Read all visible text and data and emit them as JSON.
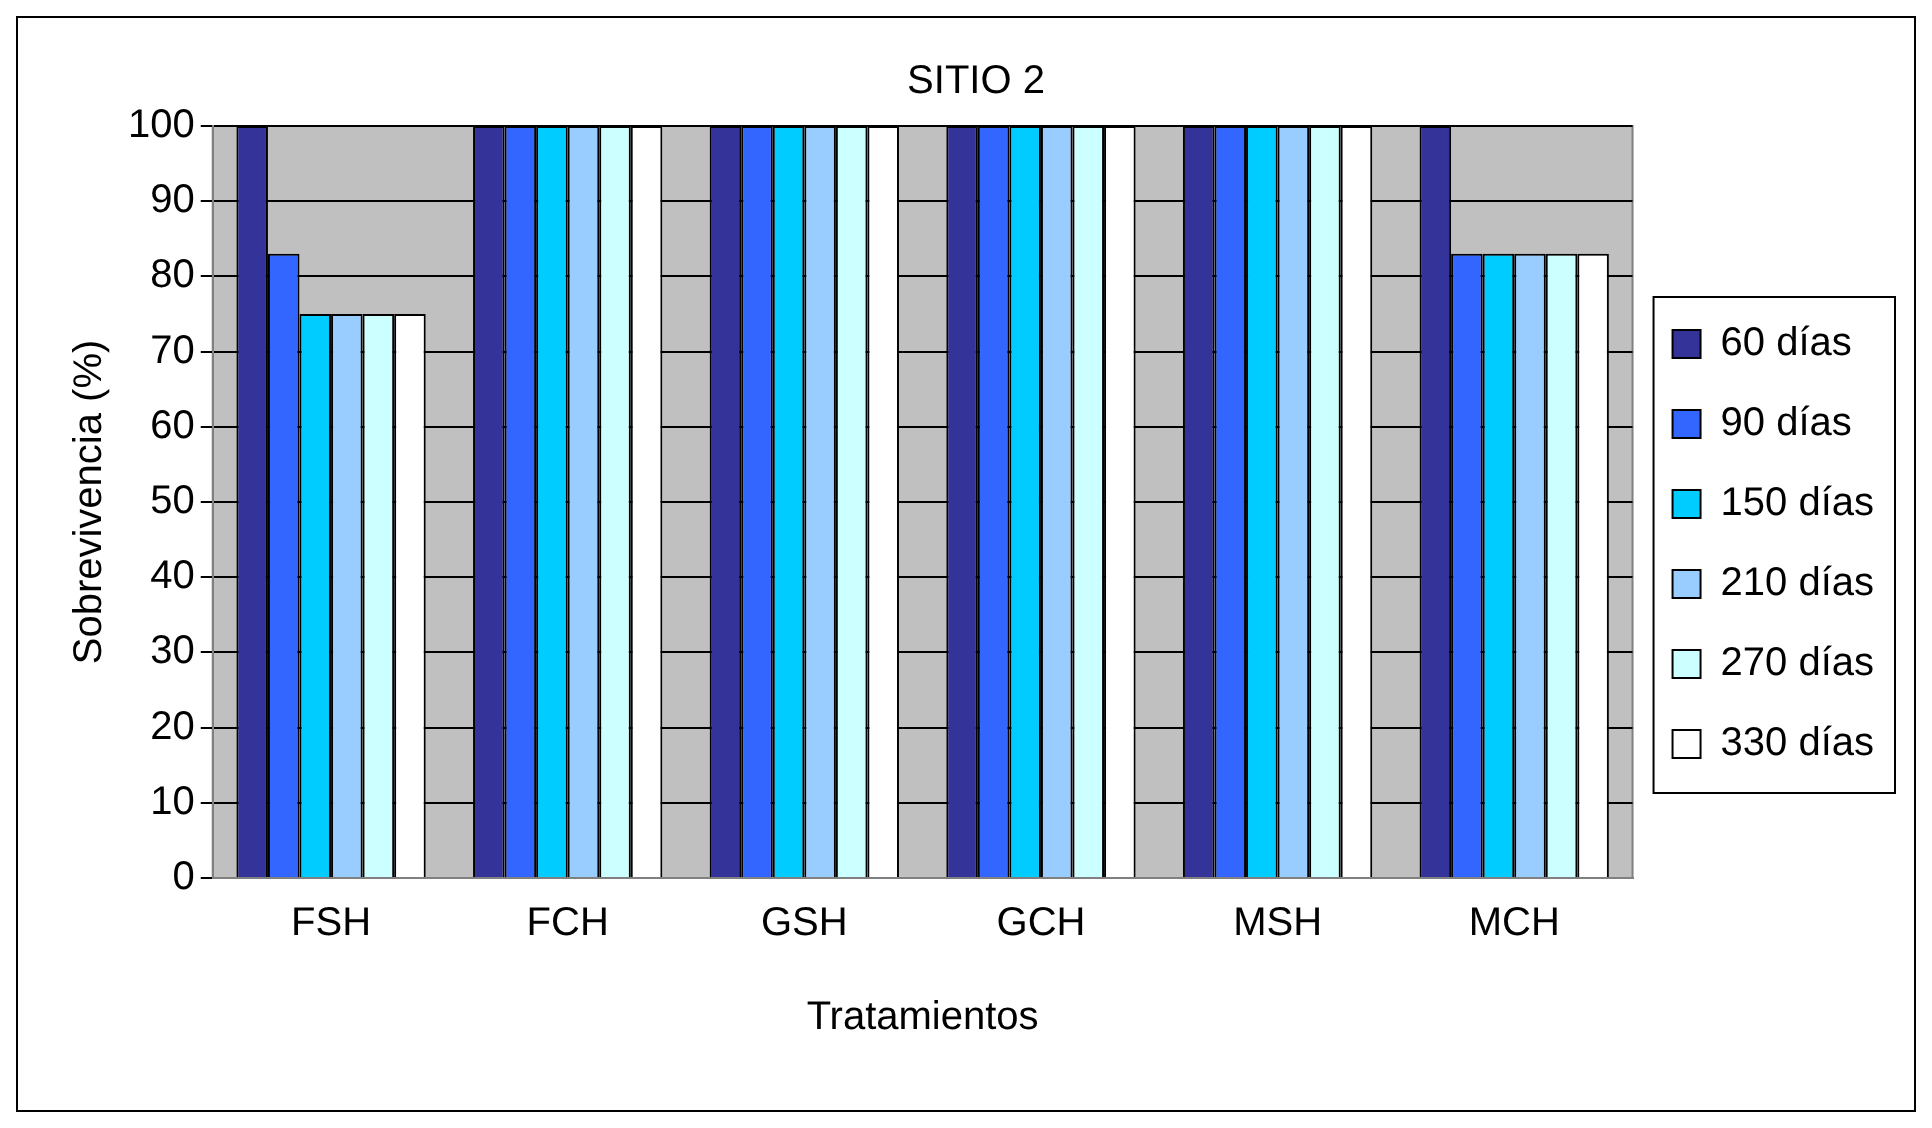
{
  "chart_data": {
    "type": "bar",
    "title": "SITIO 2",
    "xlabel": "Tratamientos",
    "ylabel": "Sobrevivencia (%)",
    "categories": [
      "FSH",
      "FCH",
      "GSH",
      "GCH",
      "MSH",
      "MCH"
    ],
    "series": [
      {
        "name": "60 días",
        "color": "#333399",
        "values": [
          100,
          100,
          100,
          100,
          100,
          100
        ]
      },
      {
        "name": "90 días",
        "color": "#3366ff",
        "values": [
          83,
          100,
          100,
          100,
          100,
          83
        ]
      },
      {
        "name": "150 días",
        "color": "#00ccff",
        "values": [
          75,
          100,
          100,
          100,
          100,
          83
        ]
      },
      {
        "name": "210 días",
        "color": "#99ccff",
        "values": [
          75,
          100,
          100,
          100,
          100,
          83
        ]
      },
      {
        "name": "270 días",
        "color": "#ccffff",
        "values": [
          75,
          100,
          100,
          100,
          100,
          83
        ]
      },
      {
        "name": "330 días",
        "color": "#ffffff",
        "values": [
          75,
          100,
          100,
          100,
          100,
          83
        ]
      }
    ],
    "ylim": [
      0,
      100
    ],
    "yticks": [
      0,
      10,
      20,
      30,
      40,
      50,
      60,
      70,
      80,
      90,
      100
    ],
    "grid": "y",
    "legend": "right"
  }
}
